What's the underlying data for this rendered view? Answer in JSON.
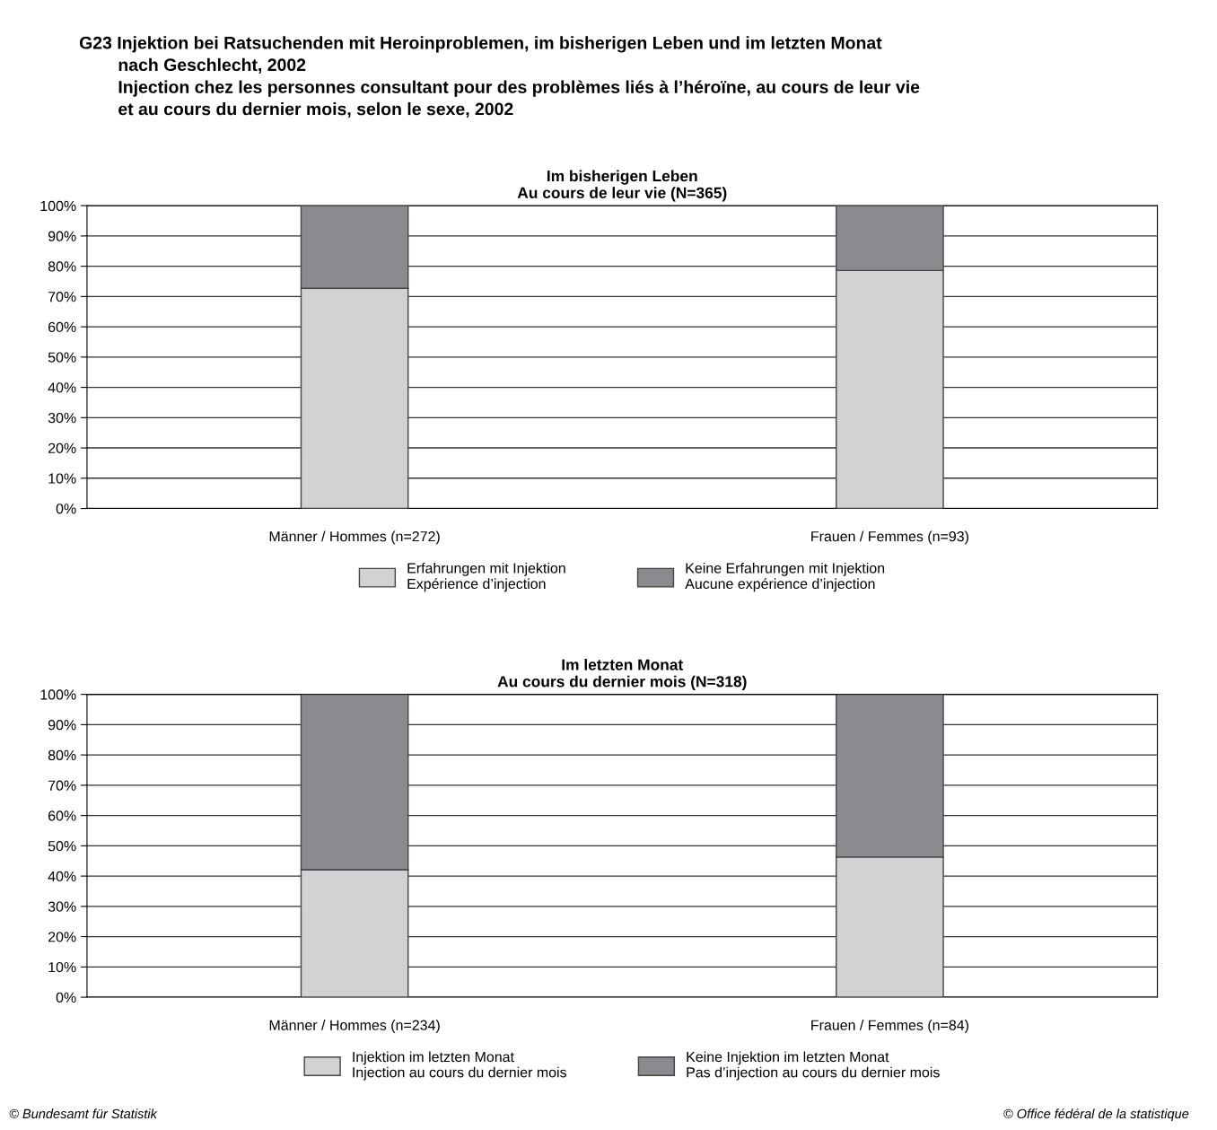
{
  "chart_data": [
    {
      "type": "bar",
      "stacked": true,
      "title": "Im bisherigen Leben\nAu cours de leur vie (N=365)",
      "categories": [
        "Männer / Hommes (n=272)",
        "Frauen / Femmes (n=93)"
      ],
      "series": [
        {
          "name": "Erfahrungen mit Injektion\nExpérience d’injection",
          "color": "#d1d2d4",
          "values": [
            72.7,
            78.6
          ]
        },
        {
          "name": "Keine Erfahrungen mit Injektion\nAucune expérience d’injection",
          "color": "#8a8b8f",
          "values": [
            27.3,
            21.4
          ]
        }
      ],
      "ylim": [
        0,
        100
      ],
      "yticks": [
        {
          "value": 0,
          "label": "0%"
        },
        {
          "value": 10,
          "label": "10%"
        },
        {
          "value": 20,
          "label": "20%"
        },
        {
          "value": 30,
          "label": "30%"
        },
        {
          "value": 40,
          "label": "40%"
        },
        {
          "value": 50,
          "label": "50%"
        },
        {
          "value": 60,
          "label": "60%"
        },
        {
          "value": 70,
          "label": "70%"
        },
        {
          "value": 80,
          "label": "80%"
        },
        {
          "value": 90,
          "label": "90%"
        },
        {
          "value": 100,
          "label": "100%"
        }
      ],
      "grid": "y",
      "legend": "bottom",
      "annotations": [
        "G23 Injektion bei Ratsuchenden mit Heroinproblemen, im bisherigen Leben und im letzten Monat\n        nach Geschlecht, 2002\n        Injection chez les personnes consultant pour des problèmes liés à l’héroïne, au cours de leur vie\n        et au cours du dernier mois, selon le sexe, 2002"
      ]
    },
    {
      "type": "bar",
      "stacked": true,
      "title": "Im letzten Monat\nAu cours du dernier mois (N=318)",
      "categories": [
        "Männer / Hommes (n=234)",
        "Frauen / Femmes (n=84)"
      ],
      "series": [
        {
          "name": "Injektion im letzten Monat\nInjection au cours du dernier mois",
          "color": "#d1d2d4",
          "values": [
            42.1,
            46.3
          ]
        },
        {
          "name": "Keine Injektion im letzten Monat\nPas d’injection au cours du dernier mois",
          "color": "#8a8b8f",
          "values": [
            57.9,
            53.7
          ]
        }
      ],
      "ylim": [
        0,
        100
      ],
      "yticks": [
        {
          "value": 0,
          "label": "0%"
        },
        {
          "value": 10,
          "label": "10%"
        },
        {
          "value": 20,
          "label": "20%"
        },
        {
          "value": 30,
          "label": "30%"
        },
        {
          "value": 40,
          "label": "40%"
        },
        {
          "value": 50,
          "label": "50%"
        },
        {
          "value": 60,
          "label": "60%"
        },
        {
          "value": 70,
          "label": "70%"
        },
        {
          "value": 80,
          "label": "80%"
        },
        {
          "value": 90,
          "label": "90%"
        },
        {
          "value": 100,
          "label": "100%"
        }
      ],
      "grid": "y",
      "legend": "bottom",
      "annotations": [
        "© Bundesamt für Statistik",
        "© Office fédéral de la statistique"
      ]
    }
  ]
}
